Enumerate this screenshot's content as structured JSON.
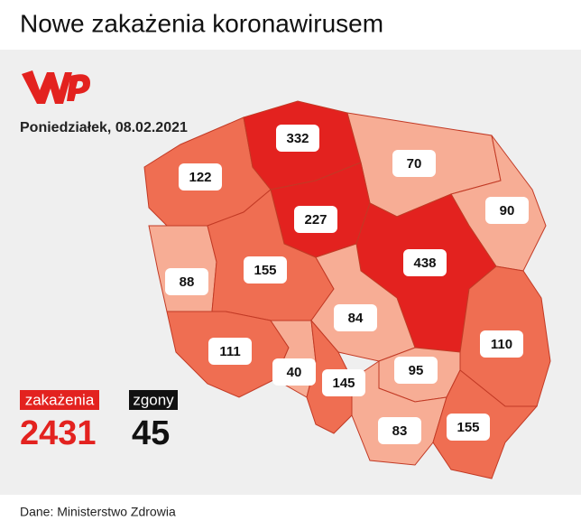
{
  "header": {
    "title": "Nowe zakażenia koronawirusem"
  },
  "date": "Poniedziałek, 08.02.2021",
  "regions": [
    {
      "value": 122,
      "color": "#ef6e52"
    },
    {
      "value": 332,
      "color": "#e3221f"
    },
    {
      "value": 70,
      "color": "#f7ad95"
    },
    {
      "value": 90,
      "color": "#f7ad95"
    },
    {
      "value": 227,
      "color": "#e3221f"
    },
    {
      "value": 88,
      "color": "#f7ad95"
    },
    {
      "value": 155,
      "color": "#ef6e52"
    },
    {
      "value": 438,
      "color": "#e3221f"
    },
    {
      "value": 84,
      "color": "#f7ad95"
    },
    {
      "value": 110,
      "color": "#ef6e52"
    },
    {
      "value": 111,
      "color": "#ef6e52"
    },
    {
      "value": 40,
      "color": "#f7ad95"
    },
    {
      "value": 145,
      "color": "#ef6e52"
    },
    {
      "value": 95,
      "color": "#f7ad95"
    },
    {
      "value": 83,
      "color": "#f7ad95"
    },
    {
      "value": 155,
      "color": "#ef6e52"
    }
  ],
  "totals": {
    "cases_label": "zakażenia",
    "cases": 2431,
    "deaths_label": "zgony",
    "deaths": 45
  },
  "source": "Dane: Ministerstwo Zdrowia"
}
